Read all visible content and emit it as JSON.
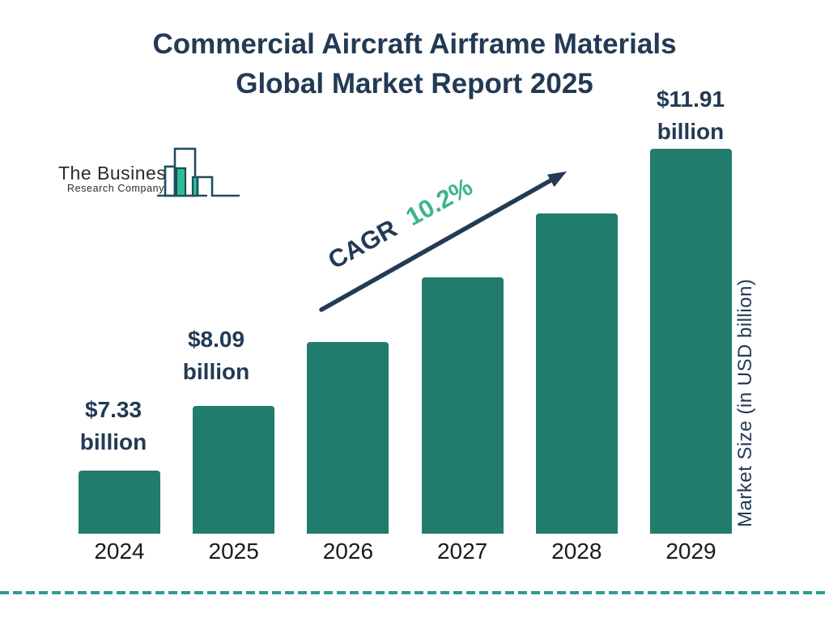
{
  "title": {
    "line1": "Commercial Aircraft Airframe Materials",
    "line2": "Global Market Report 2025"
  },
  "logo": {
    "name": "The Business",
    "subname": "Research Company"
  },
  "cagr": {
    "label": "CAGR",
    "value": "10.2%"
  },
  "y_axis_label": "Market Size (in USD billion)",
  "colors": {
    "bar": "#217C6D",
    "navy_text": "#223A54",
    "cagr_green": "#3CB589",
    "arrow": "#233B55",
    "dashed_line": "#2B9C93",
    "year_label": "#1A1A1A",
    "logo_outline": "#1F4E5E",
    "logo_green": "#2EBE97"
  },
  "chart_data": {
    "type": "bar",
    "title": "Commercial Aircraft Airframe Materials Global Market Report 2025",
    "categories": [
      "2024",
      "2025",
      "2026",
      "2027",
      "2028",
      "2029"
    ],
    "values": [
      7.33,
      8.09,
      8.92,
      9.83,
      10.81,
      11.91
    ],
    "estimated_indices": [
      2,
      3,
      4
    ],
    "value_unit": "USD billion",
    "labeled_points": [
      {
        "index": 0,
        "line1": "$7.33",
        "line2": "billion"
      },
      {
        "index": 1,
        "line1": "$8.09",
        "line2": "billion"
      },
      {
        "index": 5,
        "line1": "$11.91",
        "line2": "billion"
      }
    ],
    "cagr": "10.2%",
    "xlabel": "",
    "ylabel": "Market Size (in USD billion)",
    "legend": false,
    "grid": false,
    "bar_color": "#217C6D"
  }
}
